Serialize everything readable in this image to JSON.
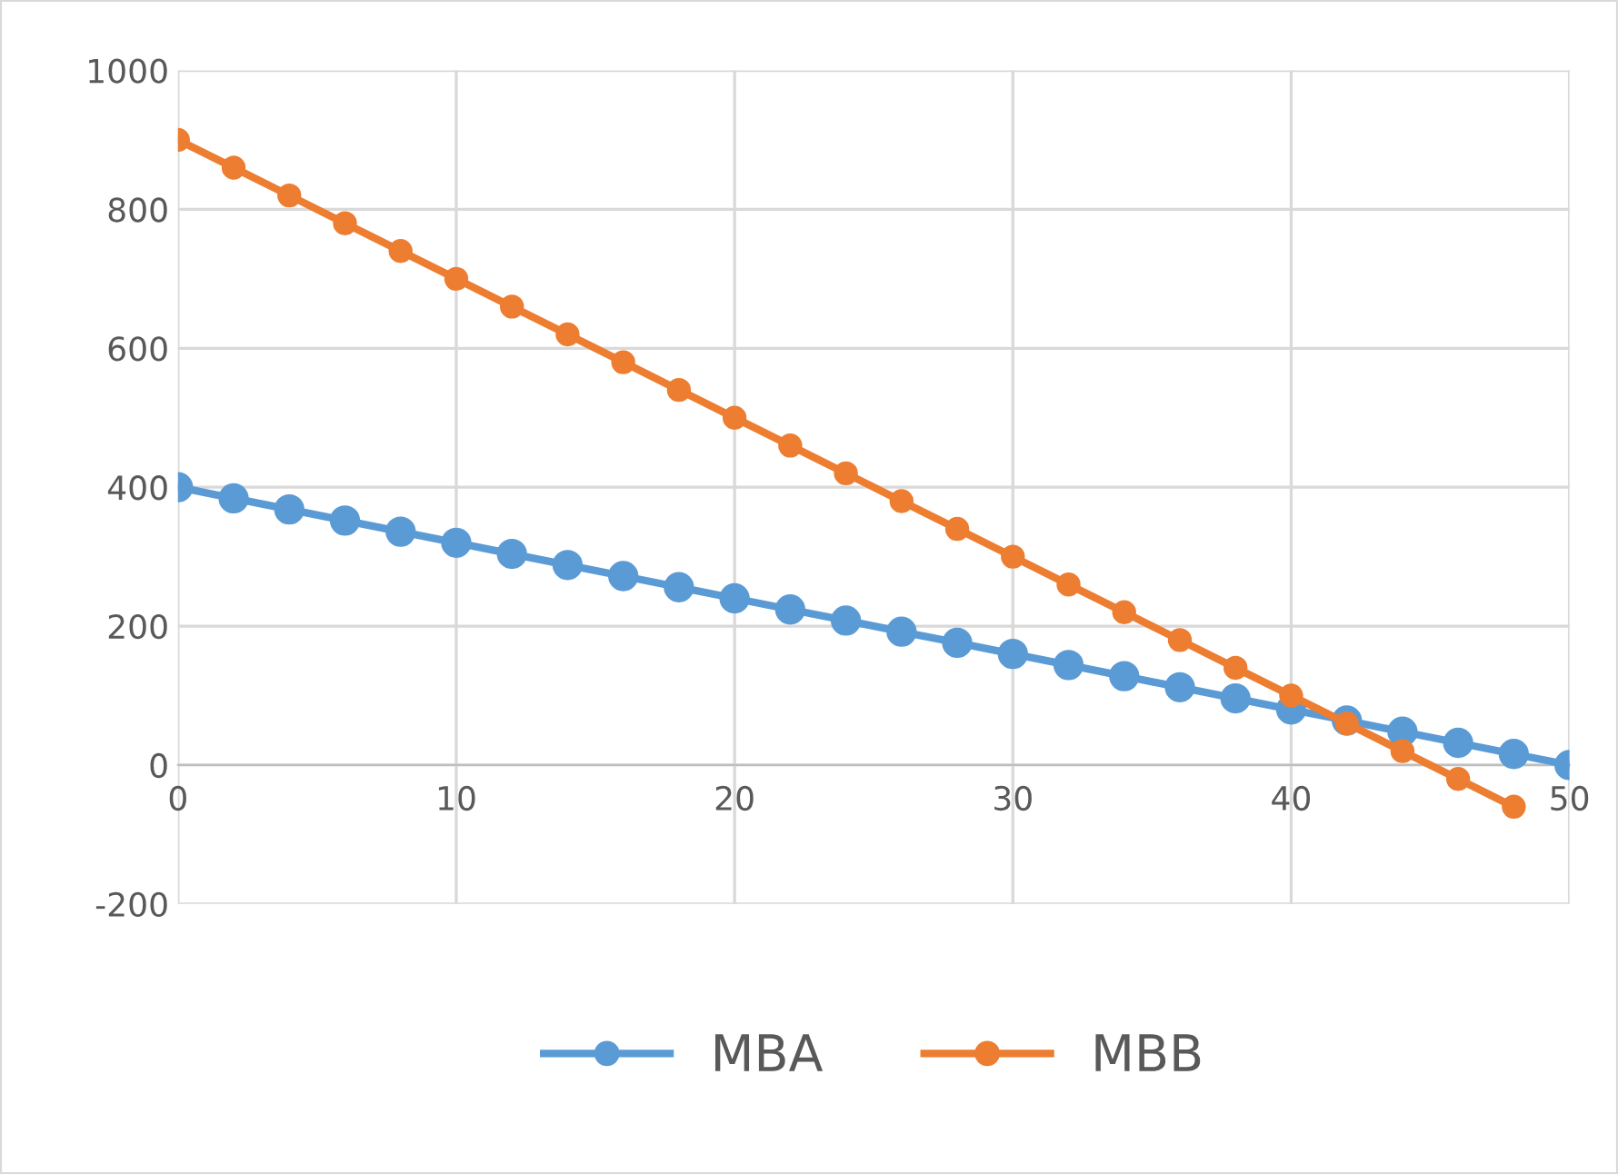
{
  "chart_data": {
    "type": "line",
    "x": [
      0,
      2,
      4,
      6,
      8,
      10,
      12,
      14,
      16,
      18,
      20,
      22,
      24,
      26,
      28,
      30,
      32,
      34,
      36,
      38,
      40,
      42,
      44,
      46,
      48,
      50
    ],
    "series": [
      {
        "name": "MBA",
        "color": "#5b9bd5",
        "values": [
          400,
          384,
          368,
          352,
          336,
          320,
          304,
          288,
          272,
          256,
          240,
          224,
          208,
          192,
          176,
          160,
          144,
          128,
          112,
          96,
          80,
          64,
          48,
          32,
          16,
          0
        ]
      },
      {
        "name": "MBB",
        "color": "#ed7d31",
        "x": [
          0,
          2,
          4,
          6,
          8,
          10,
          12,
          14,
          16,
          18,
          20,
          22,
          24,
          26,
          28,
          30,
          32,
          34,
          36,
          38,
          40,
          42,
          44,
          46,
          48
        ],
        "values": [
          900,
          860,
          820,
          780,
          740,
          700,
          660,
          620,
          580,
          540,
          500,
          460,
          420,
          380,
          340,
          300,
          260,
          220,
          180,
          140,
          100,
          60,
          20,
          -20,
          -60
        ]
      }
    ],
    "xlim": [
      0,
      50
    ],
    "xticks": [
      0,
      10,
      20,
      30,
      40,
      50
    ],
    "ylim": [
      -200,
      1000
    ],
    "yticks": [
      -200,
      0,
      200,
      400,
      600,
      800,
      1000
    ],
    "grid": true,
    "legend": "bottom",
    "marker": "circle",
    "line_style": "solid"
  }
}
